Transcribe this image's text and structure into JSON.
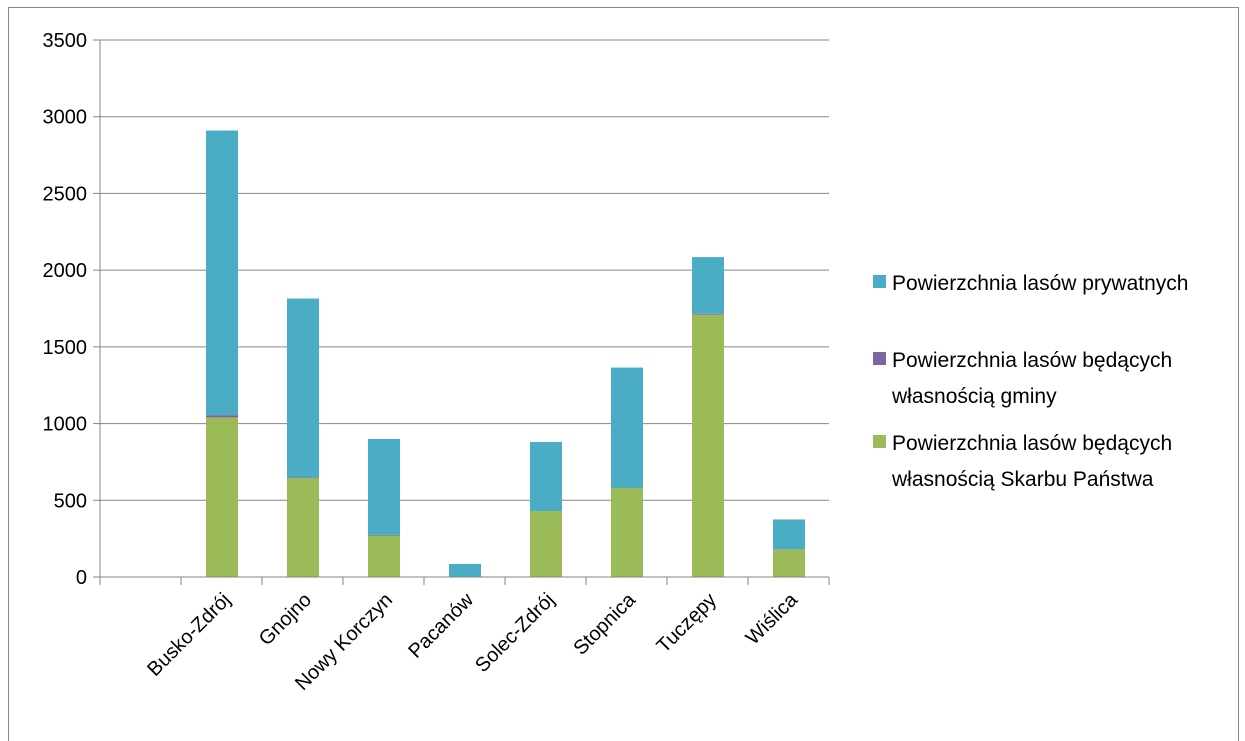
{
  "chart_data": {
    "type": "bar",
    "stacked": true,
    "categories": [
      "",
      "Busko-Zdrój",
      "Gnojno",
      "Nowy Korczyn",
      "Pacanów",
      "Solec-Zdrój",
      "Stopnica",
      "Tuczępy",
      "Wiślica"
    ],
    "series": [
      {
        "name": "Powierzchnia lasów będących własnością Skarbu Państwa",
        "legend_lines": [
          "Powierzchnia lasów będących",
          "własnością Skarbu Państwa"
        ],
        "color": "#9BBB59",
        "values": [
          0,
          1040,
          645,
          270,
          0,
          430,
          580,
          1710,
          180
        ]
      },
      {
        "name": "Powierzchnia lasów będących własnością gminy",
        "legend_lines": [
          "Powierzchnia lasów będących",
          "własnością gminy"
        ],
        "color": "#8064A2",
        "values": [
          0,
          15,
          5,
          5,
          0,
          0,
          0,
          5,
          0
        ]
      },
      {
        "name": "Powierzchnia lasów prywatnych",
        "legend_lines": [
          "Powierzchnia lasów prywatnych"
        ],
        "color": "#4BACC6",
        "values": [
          0,
          1855,
          1165,
          625,
          85,
          450,
          785,
          370,
          195
        ]
      }
    ],
    "ylim": [
      0,
      3500
    ],
    "yticks": [
      0,
      500,
      1000,
      1500,
      2000,
      2500,
      3000,
      3500
    ],
    "grid": true,
    "legend_position": "right",
    "title": "",
    "xlabel": "",
    "ylabel": ""
  }
}
